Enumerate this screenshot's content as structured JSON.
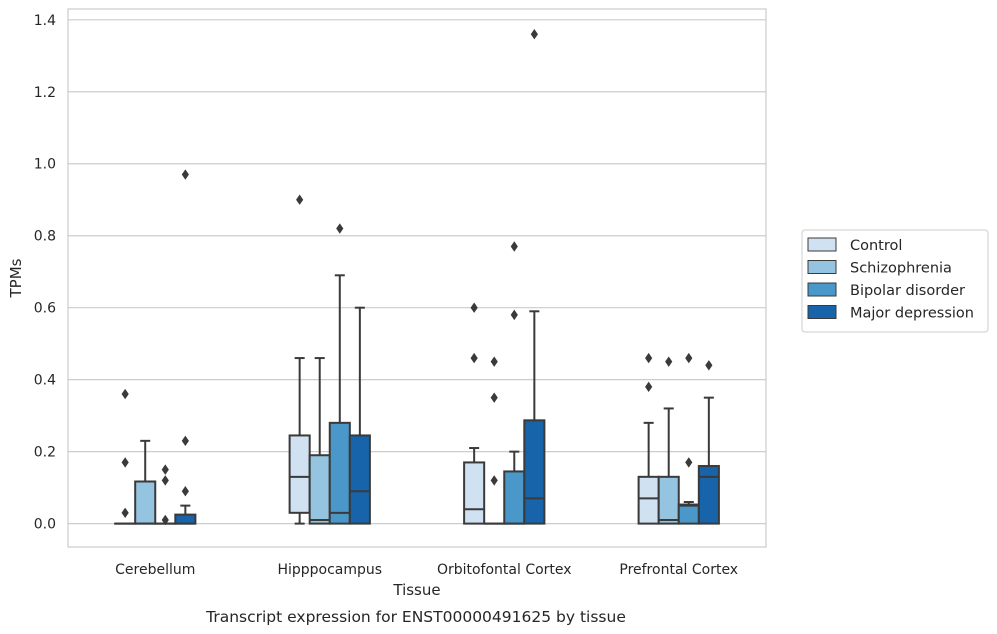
{
  "caption": "Transcript expression for ENST00000491625 by tissue",
  "chart_data": {
    "type": "boxplot",
    "title": "",
    "xlabel": "Tissue",
    "ylabel": "TPMs",
    "ylim": [
      -0.065,
      1.43
    ],
    "yticks": [
      0.0,
      0.2,
      0.4,
      0.6,
      0.8,
      1.0,
      1.2,
      1.4
    ],
    "ytick_labels": [
      "0.0",
      "0.2",
      "0.4",
      "0.6",
      "0.8",
      "1.0",
      "1.2",
      "1.4"
    ],
    "grid": "horizontal",
    "legend_position": "right",
    "categories": [
      "Cerebellum",
      "Hipppocampus",
      "Orbitofontal Cortex",
      "Prefrontal Cortex"
    ],
    "series": [
      {
        "name": "Control",
        "color": "#d0e1f2",
        "boxes": [
          {
            "q1": 0.0,
            "median": 0.0,
            "q3": 0.0,
            "whisker_low": 0.0,
            "whisker_high": 0.0,
            "outliers": [
              0.36,
              0.17,
              0.03
            ]
          },
          {
            "q1": 0.03,
            "median": 0.13,
            "q3": 0.245,
            "whisker_low": 0.0,
            "whisker_high": 0.46,
            "outliers": [
              0.9
            ]
          },
          {
            "q1": 0.0,
            "median": 0.04,
            "q3": 0.17,
            "whisker_low": 0.0,
            "whisker_high": 0.21,
            "outliers": [
              0.6,
              0.46
            ]
          },
          {
            "q1": 0.0,
            "median": 0.07,
            "q3": 0.13,
            "whisker_low": 0.0,
            "whisker_high": 0.28,
            "outliers": [
              0.46,
              0.38
            ]
          }
        ]
      },
      {
        "name": "Schizophrenia",
        "color": "#94c4df",
        "boxes": [
          {
            "q1": 0.0,
            "median": 0.0,
            "q3": 0.117,
            "whisker_low": 0.0,
            "whisker_high": 0.23,
            "outliers": []
          },
          {
            "q1": 0.0,
            "median": 0.01,
            "q3": 0.19,
            "whisker_low": 0.0,
            "whisker_high": 0.46,
            "outliers": []
          },
          {
            "q1": 0.0,
            "median": 0.0,
            "q3": 0.0,
            "whisker_low": 0.0,
            "whisker_high": 0.0,
            "outliers": [
              0.45,
              0.35,
              0.12
            ]
          },
          {
            "q1": 0.0,
            "median": 0.01,
            "q3": 0.13,
            "whisker_low": 0.0,
            "whisker_high": 0.32,
            "outliers": [
              0.45
            ]
          }
        ]
      },
      {
        "name": "Bipolar disorder",
        "color": "#4a98c9",
        "boxes": [
          {
            "q1": 0.0,
            "median": 0.0,
            "q3": 0.0,
            "whisker_low": 0.0,
            "whisker_high": 0.0,
            "outliers": [
              0.15,
              0.12,
              0.01
            ]
          },
          {
            "q1": 0.0,
            "median": 0.03,
            "q3": 0.28,
            "whisker_low": 0.0,
            "whisker_high": 0.69,
            "outliers": [
              0.82
            ]
          },
          {
            "q1": 0.0,
            "median": 0.0,
            "q3": 0.145,
            "whisker_low": 0.0,
            "whisker_high": 0.2,
            "outliers": [
              0.77,
              0.58
            ]
          },
          {
            "q1": 0.0,
            "median": 0.05,
            "q3": 0.053,
            "whisker_low": 0.0,
            "whisker_high": 0.06,
            "outliers": [
              0.46,
              0.17
            ]
          }
        ]
      },
      {
        "name": "Major depression",
        "color": "#1764ab",
        "boxes": [
          {
            "q1": 0.0,
            "median": 0.0,
            "q3": 0.025,
            "whisker_low": 0.0,
            "whisker_high": 0.05,
            "outliers": [
              0.97,
              0.23,
              0.09
            ]
          },
          {
            "q1": 0.0,
            "median": 0.09,
            "q3": 0.245,
            "whisker_low": 0.0,
            "whisker_high": 0.6,
            "outliers": []
          },
          {
            "q1": 0.0,
            "median": 0.07,
            "q3": 0.287,
            "whisker_low": 0.0,
            "whisker_high": 0.59,
            "outliers": [
              1.36
            ]
          },
          {
            "q1": 0.0,
            "median": 0.13,
            "q3": 0.16,
            "whisker_low": 0.0,
            "whisker_high": 0.35,
            "outliers": [
              0.44
            ]
          }
        ]
      }
    ]
  }
}
